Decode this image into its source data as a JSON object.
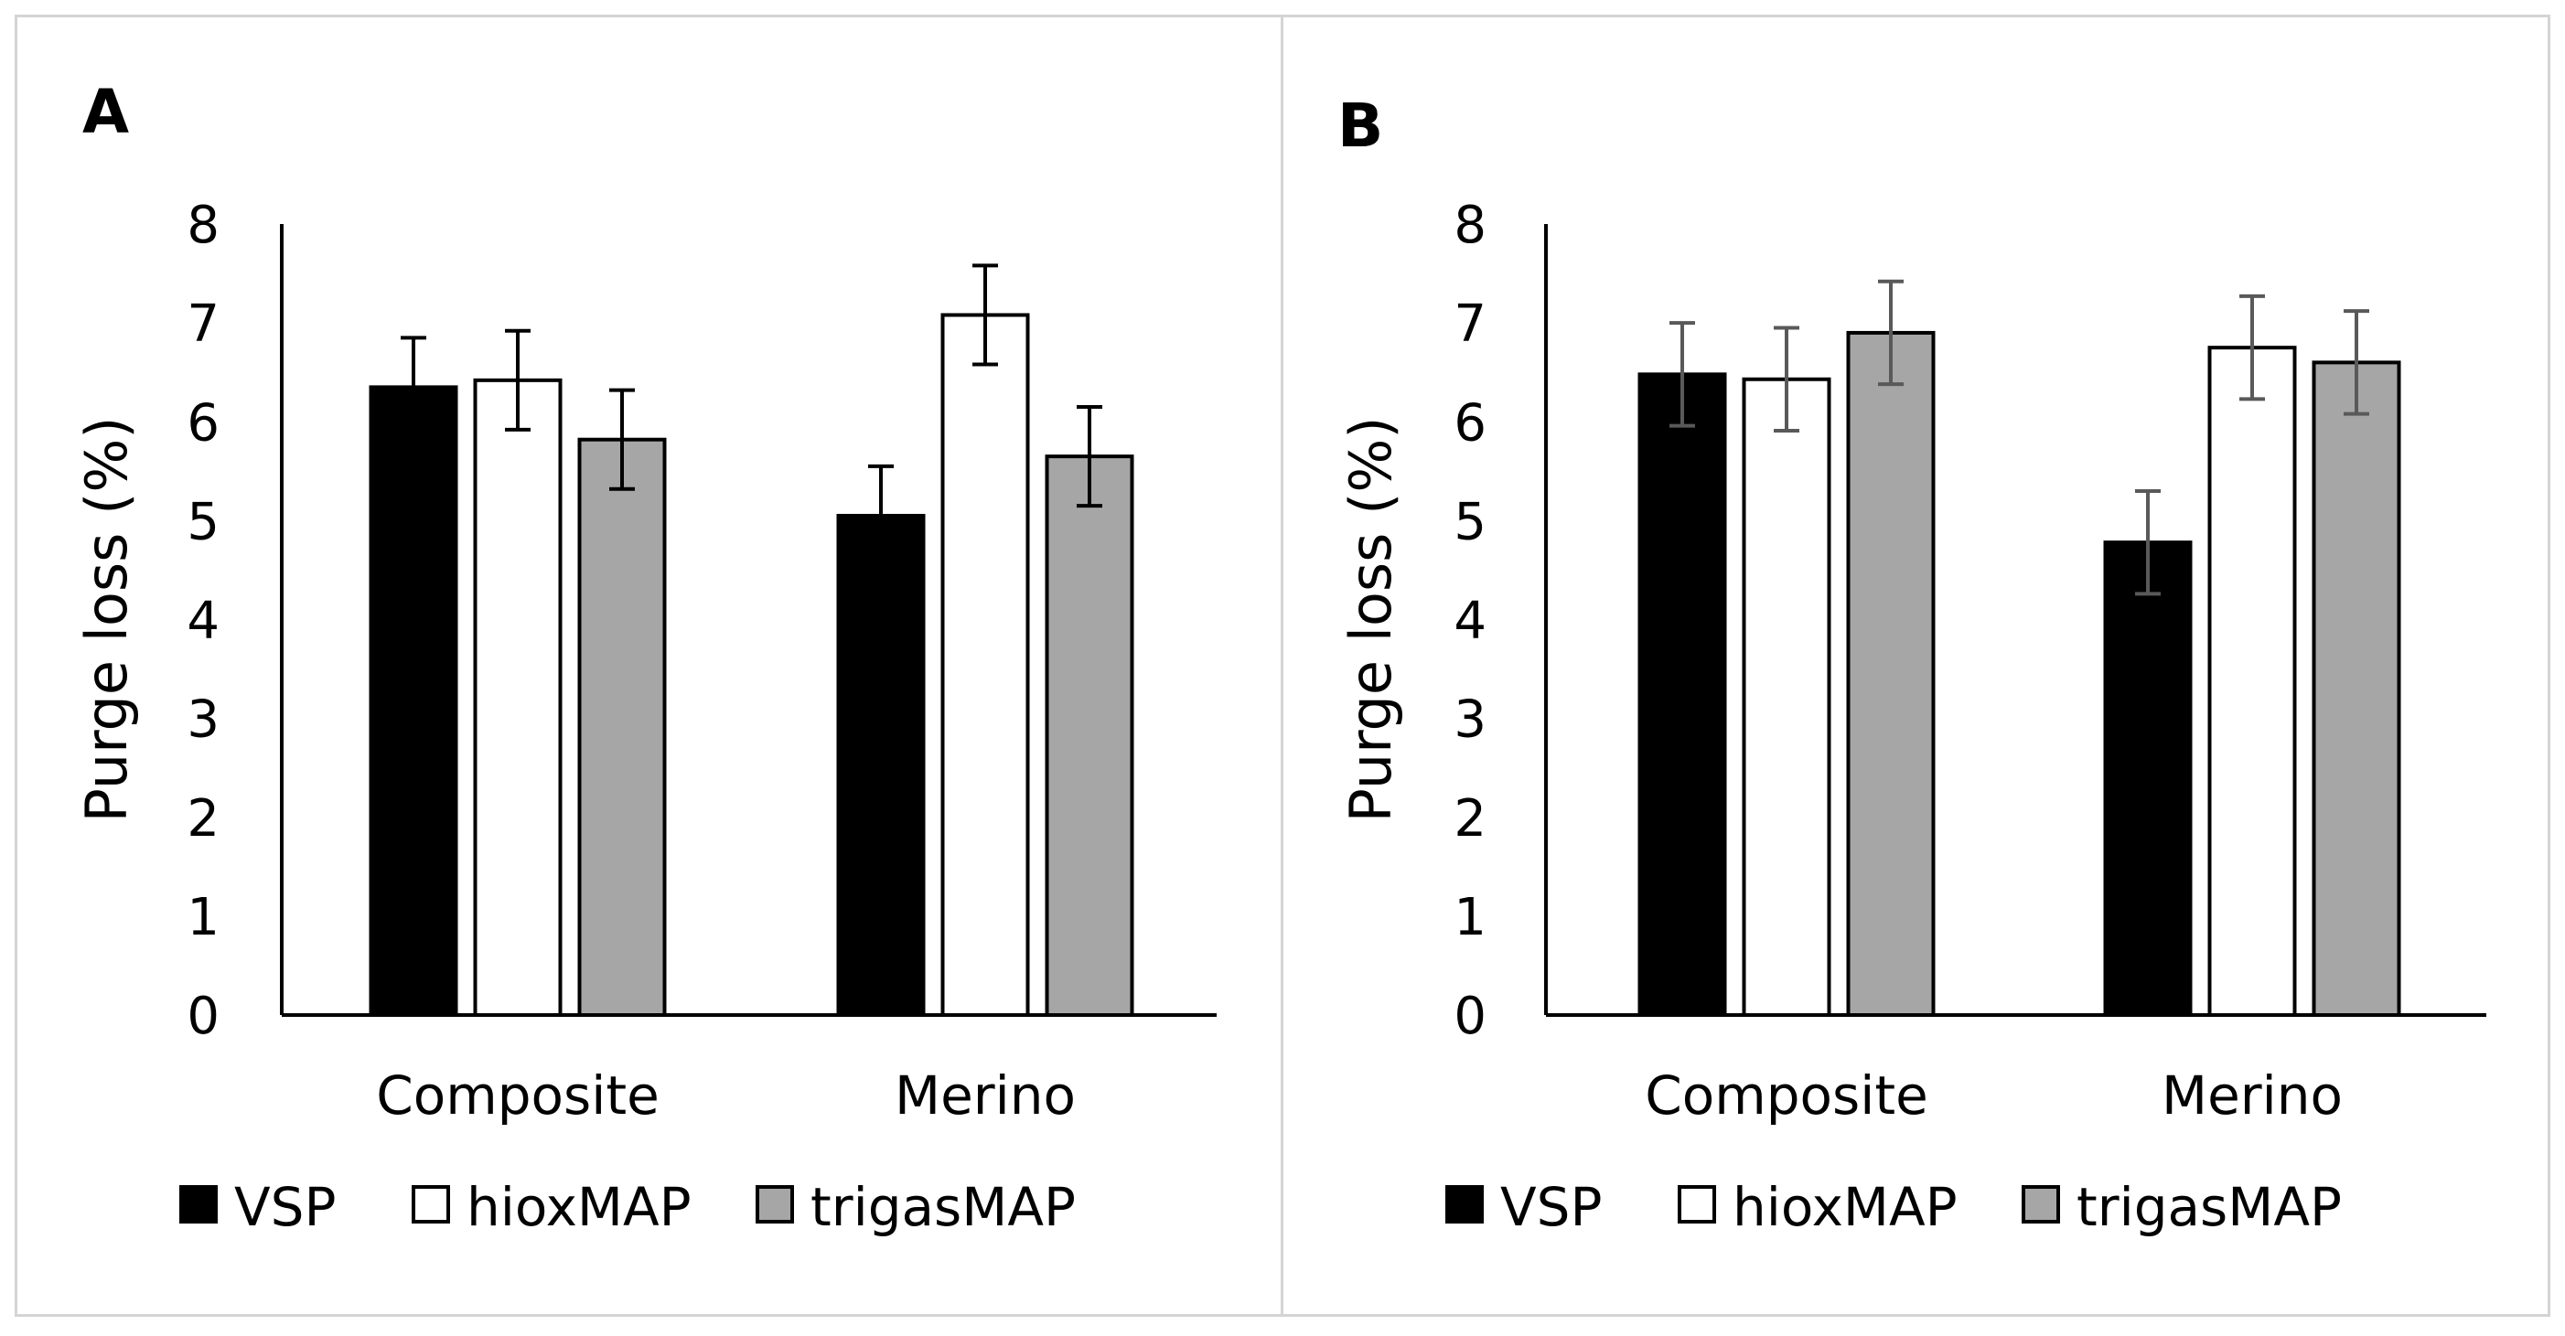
{
  "chart_data": [
    {
      "type": "bar",
      "panel_label": "A",
      "title": "",
      "xlabel": "",
      "ylabel": "Purge loss (%)",
      "ylim": [
        0,
        8
      ],
      "yticks": [
        "0",
        "1",
        "2",
        "3",
        "4",
        "5",
        "6",
        "7",
        "8"
      ],
      "categories": [
        "Composite",
        "Merino"
      ],
      "errorbar_color": "#000000",
      "series": [
        {
          "name": "VSP",
          "color": "#000000",
          "values": [
            6.35,
            5.05
          ],
          "errors": [
            0.5,
            0.5
          ]
        },
        {
          "name": "hioxMAP",
          "color": "#ffffff",
          "values": [
            6.42,
            7.08
          ],
          "errors": [
            0.5,
            0.5
          ]
        },
        {
          "name": "trigasMAP",
          "color": "#a6a6a6",
          "values": [
            5.82,
            5.65
          ],
          "errors": [
            0.5,
            0.5
          ]
        }
      ],
      "legend_position": "bottom"
    },
    {
      "type": "bar",
      "panel_label": "B",
      "title": "",
      "xlabel": "",
      "ylabel": "Purge loss (%)",
      "ylim": [
        0,
        8
      ],
      "yticks": [
        "0",
        "1",
        "2",
        "3",
        "4",
        "5",
        "6",
        "7",
        "8"
      ],
      "categories": [
        "Composite",
        "Merino"
      ],
      "errorbar_color": "#595959",
      "series": [
        {
          "name": "VSP",
          "color": "#000000",
          "values": [
            6.48,
            4.78
          ],
          "errors": [
            0.52,
            0.52
          ]
        },
        {
          "name": "hioxMAP",
          "color": "#ffffff",
          "values": [
            6.43,
            6.75
          ],
          "errors": [
            0.52,
            0.52
          ]
        },
        {
          "name": "trigasMAP",
          "color": "#a6a6a6",
          "values": [
            6.9,
            6.6
          ],
          "errors": [
            0.52,
            0.52
          ]
        }
      ],
      "legend_position": "bottom"
    }
  ]
}
